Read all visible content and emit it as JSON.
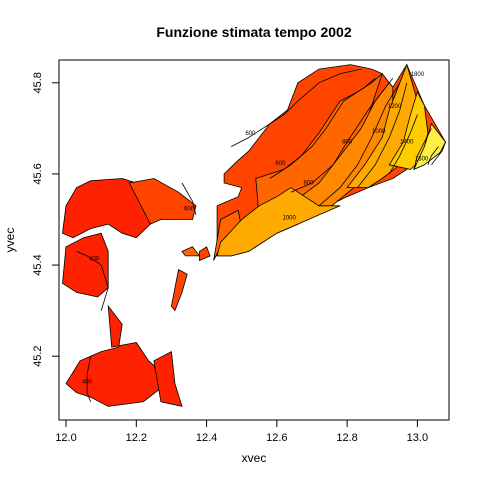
{
  "chart_data": {
    "type": "heatmap",
    "title": "Funzione stimata tempo 2002",
    "xlabel": "xvec",
    "ylabel": "yvec",
    "xlim": [
      11.98,
      13.09
    ],
    "ylim": [
      45.06,
      45.85
    ],
    "x_ticks": [
      "12.0",
      "12.2",
      "12.4",
      "12.6",
      "12.8",
      "13.0"
    ],
    "x_tick_values": [
      12.0,
      12.2,
      12.4,
      12.6,
      12.8,
      13.0
    ],
    "y_ticks": [
      "45.2",
      "45.4",
      "45.6",
      "45.8"
    ],
    "y_tick_values": [
      45.2,
      45.4,
      45.6,
      45.8
    ],
    "grid": false,
    "legend": "none",
    "contour_levels": [
      400,
      600,
      800,
      1000,
      1200,
      1400,
      1600,
      1800
    ],
    "colors": {
      "low": "#ff2200",
      "mid_low": "#ff4400",
      "mid": "#ff6600",
      "mid_high": "#ff8800",
      "high": "#ffaa00",
      "higher": "#ffcc00",
      "top": "#ffee44",
      "max": "#ffff99"
    },
    "contour_labels": [
      {
        "text": "400",
        "x": 12.08,
        "y": 45.41
      },
      {
        "text": "400",
        "x": 12.06,
        "y": 45.14
      },
      {
        "text": "600",
        "x": 12.35,
        "y": 45.52
      },
      {
        "text": "600",
        "x": 12.525,
        "y": 45.685
      },
      {
        "text": "600",
        "x": 12.61,
        "y": 45.62
      },
      {
        "text": "800",
        "x": 12.69,
        "y": 45.577
      },
      {
        "text": "1000",
        "x": 12.635,
        "y": 45.5
      },
      {
        "text": "800",
        "x": 12.8,
        "y": 45.667
      },
      {
        "text": "1000",
        "x": 12.89,
        "y": 45.69
      },
      {
        "text": "1200",
        "x": 12.935,
        "y": 45.745
      },
      {
        "text": "1400",
        "x": 12.97,
        "y": 45.667
      },
      {
        "text": "1600",
        "x": 13.012,
        "y": 45.63
      },
      {
        "text": "1800",
        "x": 13.0,
        "y": 45.815
      }
    ]
  }
}
